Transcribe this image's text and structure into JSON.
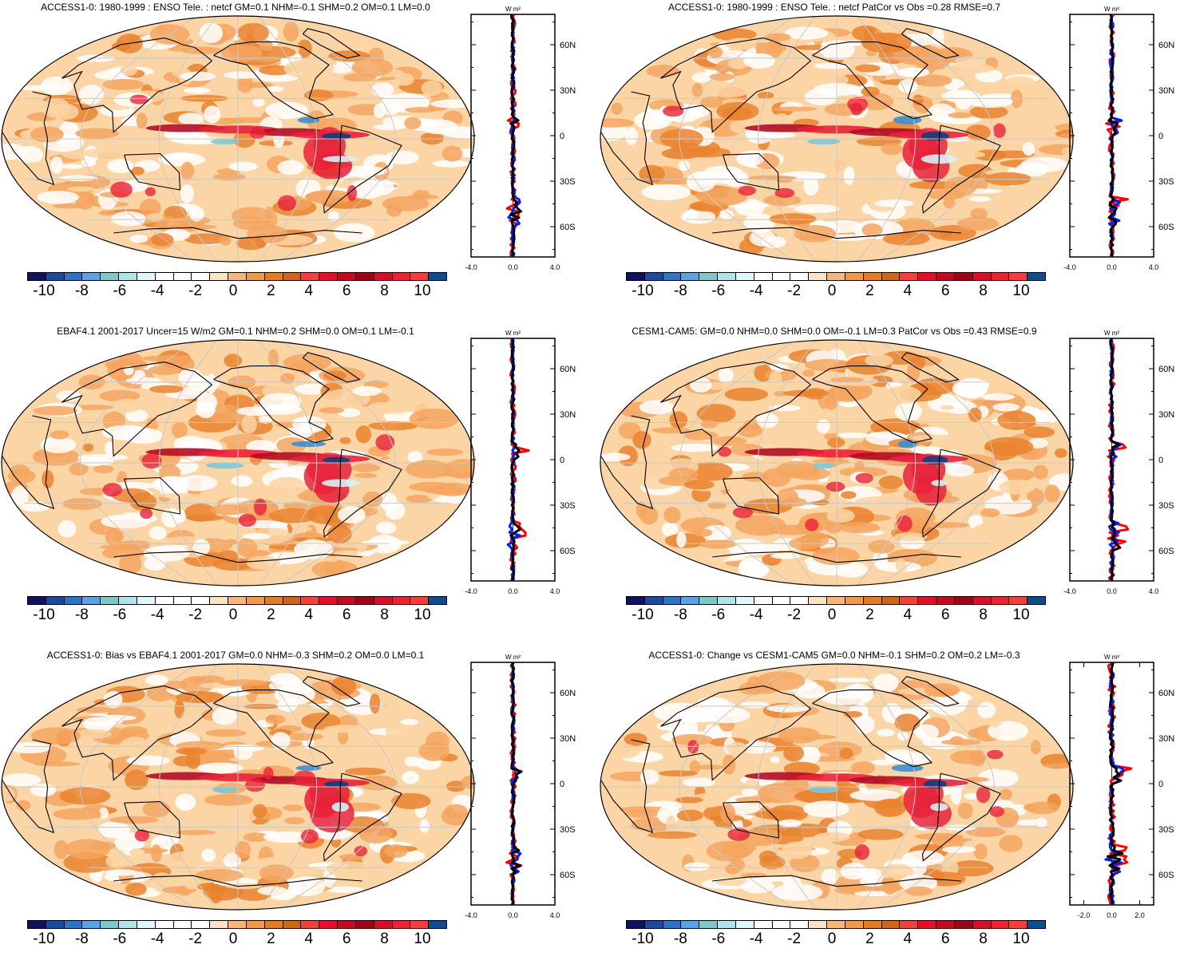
{
  "colors": {
    "ocean_white": "#ffffff",
    "light_orange": "#fbd5a5",
    "mid_orange": "#f4a55f",
    "orange": "#e9832f",
    "red": "#e8223a",
    "dark_red": "#b00d24",
    "light_blue": "#d7f1f5",
    "mid_blue": "#7ec6d6",
    "blue": "#3b8fd1",
    "dark_blue": "#123e80",
    "coast": "#000000",
    "grid": "#c8c8c8",
    "line_red": "#ff0000",
    "line_blue": "#0022ee",
    "line_black": "#000000"
  },
  "colorbar": {
    "colors": [
      "#10125e",
      "#1a4c9a",
      "#2d73c6",
      "#5aa3e2",
      "#7ec6c8",
      "#aee4ea",
      "#dff7f8",
      "#ffffff",
      "#ffffff",
      "#ffffff",
      "#fde3c3",
      "#f6b87a",
      "#ef9a46",
      "#e47c22",
      "#cd6716",
      "#f0413c",
      "#e2102a",
      "#c30a22",
      "#9c0518",
      "#d6102c",
      "#ec2334",
      "#f33d3f",
      "#0f4c8a"
    ],
    "labels": [
      "-10",
      "-8",
      "-6",
      "-4",
      "-2",
      "0",
      "2",
      "4",
      "6",
      "8",
      "10"
    ]
  },
  "profile_axis": {
    "unit": "W m²",
    "lat_ticks": [
      "60N",
      "30N",
      "0",
      "30S",
      "60S"
    ]
  },
  "panels": [
    {
      "id": "p1",
      "title": "ACCESS1-0: 1980-1999 : ENSO Tele. : netcf GM=0.1 NHM=-0.1 SHM=0.2 OM=0.1 LM=0.0",
      "x_ticks": [
        "-4.0",
        "0.0",
        "4.0"
      ],
      "x_range": [
        -4,
        4
      ]
    },
    {
      "id": "p2",
      "title": "ACCESS1-0: 1980-1999 : ENSO Tele. : netcf PatCor vs Obs =0.28 RMSE=0.7",
      "x_ticks": [
        "-4.0",
        "0.0",
        "4.0"
      ],
      "x_range": [
        -4,
        4
      ]
    },
    {
      "id": "p3",
      "title": "EBAF4.1 2001-2017 Uncer=15 W/m2 GM=0.1 NHM=0.2 SHM=0.0 OM=0.1 LM=-0.1",
      "x_ticks": [
        "-4.0",
        "0.0",
        "4.0"
      ],
      "x_range": [
        -4,
        4
      ]
    },
    {
      "id": "p4",
      "title": "CESM1-CAM5: GM=0.0 NHM=0.0 SHM=0.0 OM=-0.1 LM=0.3 PatCor vs Obs =0.43 RMSE=0.9",
      "x_ticks": [
        "-4.0",
        "0.0",
        "4.0"
      ],
      "x_range": [
        -4,
        4
      ]
    },
    {
      "id": "p5",
      "title": "ACCESS1-0: Bias vs EBAF4.1 2001-2017 GM=0.0 NHM=-0.3 SHM=0.2 OM=0.0 LM=0.1",
      "x_ticks": [
        "-4.0",
        "0.0",
        "4.0"
      ],
      "x_range": [
        -4,
        4
      ]
    },
    {
      "id": "p6",
      "title": "ACCESS1-0: Change vs CESM1-CAM5 GM=0.0 NHM=-0.1 SHM=0.2 OM=0.2 LM=-0.3",
      "x_ticks": [
        "-2.0",
        "0.0",
        "2.0"
      ],
      "x_range": [
        -3,
        3
      ]
    }
  ]
}
